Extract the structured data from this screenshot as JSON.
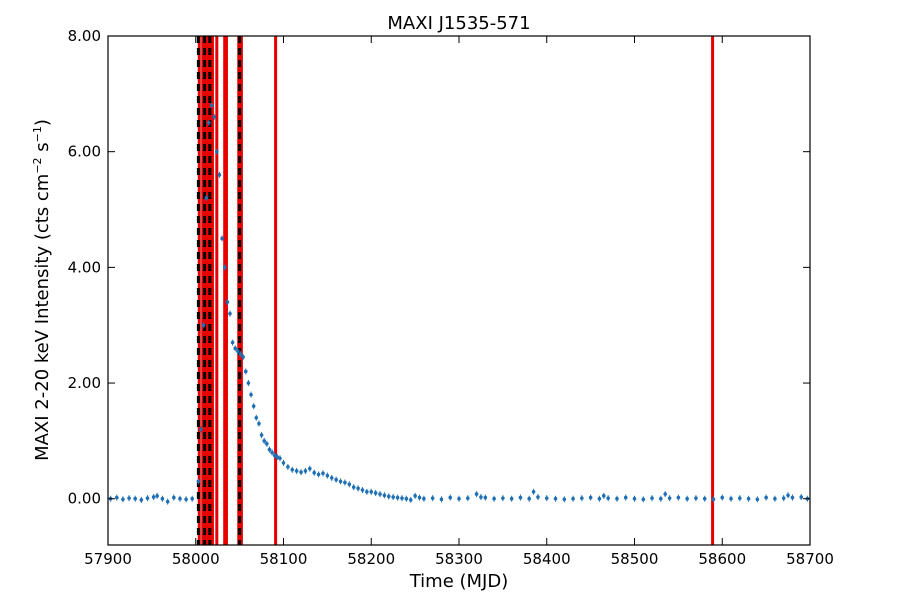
{
  "chart_data": {
    "type": "scatter",
    "title": "MAXI J1535-571",
    "xlabel": "Time (MJD)",
    "ylabel_main": "MAXI 2-20 keV Intensity (cts cm",
    "ylabel_exp1": "−2",
    "ylabel_mid": " s",
    "ylabel_exp2": "−1",
    "ylabel_end": ")",
    "xlim": [
      57900,
      58700
    ],
    "ylim": [
      -0.8,
      8.0
    ],
    "xticks": [
      57900,
      58000,
      58100,
      58200,
      58300,
      58400,
      58500,
      58600,
      58700
    ],
    "xtick_labels": [
      "57900",
      "58000",
      "58100",
      "58200",
      "58300",
      "58400",
      "58500",
      "58600",
      "58700"
    ],
    "yticks": [
      0,
      2,
      4,
      6,
      8
    ],
    "ytick_labels": [
      "0.00",
      "2.00",
      "4.00",
      "6.00",
      "8.00"
    ],
    "grid": false,
    "colors": {
      "data": "#1f6fb4",
      "red_line": "#e60000",
      "black_dash": "#000000"
    },
    "red_lines_x": [
      58004,
      58008,
      58011,
      58014,
      58017,
      58019,
      58024,
      58033,
      58035,
      58049,
      58052,
      58091,
      58589
    ],
    "black_dashed_lines_x": [
      58003,
      58010,
      58016,
      58050
    ],
    "light_curve": {
      "x": [
        57903,
        57910,
        57917,
        57924,
        57931,
        57938,
        57945,
        57952,
        57956,
        57962,
        57968,
        57975,
        57982,
        57989,
        57996,
        58003,
        58006,
        58009,
        58012,
        58015,
        58018,
        58021,
        58024,
        58027,
        58030,
        58033,
        58036,
        58039,
        58042,
        58045,
        58048,
        58051,
        58054,
        58057,
        58060,
        58063,
        58066,
        58069,
        58072,
        58075,
        58078,
        58081,
        58084,
        58087,
        58090,
        58093,
        58096,
        58100,
        58105,
        58110,
        58115,
        58120,
        58125,
        58130,
        58135,
        58140,
        58145,
        58150,
        58155,
        58160,
        58165,
        58170,
        58175,
        58180,
        58185,
        58190,
        58195,
        58200,
        58205,
        58210,
        58215,
        58220,
        58225,
        58230,
        58235,
        58240,
        58245,
        58250,
        58255,
        58260,
        58270,
        58280,
        58290,
        58300,
        58310,
        58320,
        58325,
        58330,
        58340,
        58350,
        58360,
        58370,
        58380,
        58385,
        58390,
        58400,
        58410,
        58420,
        58430,
        58440,
        58450,
        58460,
        58465,
        58470,
        58480,
        58490,
        58500,
        58510,
        58520,
        58530,
        58535,
        58540,
        58550,
        58560,
        58570,
        58580,
        58590,
        58600,
        58610,
        58620,
        58630,
        58640,
        58650,
        58660,
        58670,
        58675,
        58680,
        58690,
        58697
      ],
      "y": [
        0.0,
        0.02,
        -0.01,
        0.01,
        0.0,
        -0.02,
        0.01,
        0.03,
        0.05,
        0.0,
        -0.05,
        0.02,
        0.0,
        -0.01,
        0.0,
        0.3,
        1.2,
        3.0,
        5.2,
        6.5,
        6.8,
        6.6,
        6.0,
        5.6,
        4.5,
        4.0,
        3.4,
        3.2,
        2.7,
        2.6,
        2.55,
        2.5,
        2.45,
        2.2,
        2.0,
        1.8,
        1.6,
        1.4,
        1.3,
        1.1,
        1.0,
        0.95,
        0.85,
        0.8,
        0.75,
        0.72,
        0.7,
        0.62,
        0.55,
        0.5,
        0.48,
        0.46,
        0.48,
        0.52,
        0.45,
        0.42,
        0.44,
        0.4,
        0.36,
        0.33,
        0.3,
        0.28,
        0.25,
        0.2,
        0.18,
        0.15,
        0.12,
        0.12,
        0.1,
        0.08,
        0.06,
        0.04,
        0.03,
        0.02,
        0.01,
        0.0,
        -0.02,
        0.05,
        0.02,
        0.0,
        0.01,
        -0.01,
        0.02,
        0.0,
        0.01,
        0.08,
        0.03,
        0.02,
        0.0,
        0.01,
        0.0,
        0.02,
        0.0,
        0.12,
        0.03,
        0.01,
        0.0,
        -0.01,
        0.0,
        0.01,
        0.02,
        0.0,
        0.05,
        0.01,
        0.0,
        0.02,
        0.0,
        -0.01,
        0.01,
        0.0,
        0.08,
        0.01,
        0.02,
        0.0,
        0.01,
        0.0,
        -0.01,
        0.02,
        0.0,
        0.01,
        0.0,
        -0.01,
        0.02,
        0.0,
        0.01,
        0.06,
        0.02,
        0.03,
        0.0
      ]
    }
  }
}
